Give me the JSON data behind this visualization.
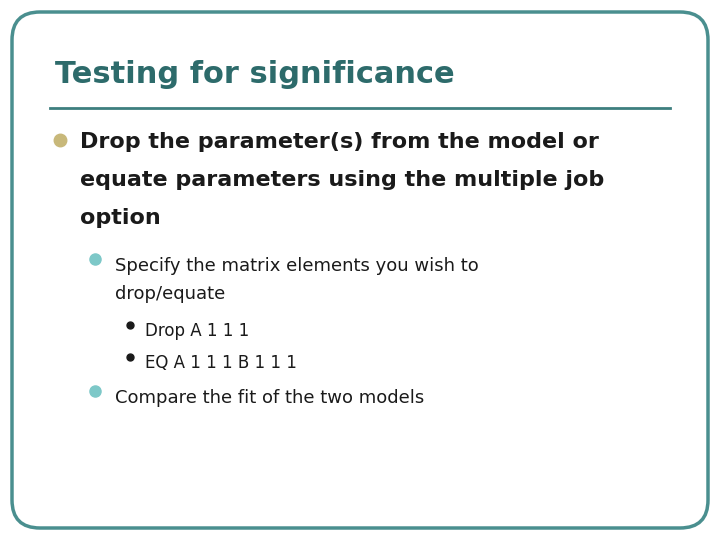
{
  "title": "Testing for significance",
  "title_color": "#2d6b6b",
  "title_fontsize": 22,
  "background_color": "#ffffff",
  "border_color": "#4a8f8f",
  "border_linewidth": 2.5,
  "separator_color": "#3d7f7f",
  "level1_bullet_color": "#c8b87a",
  "level2_bullet_color": "#7dc8c8",
  "level3_bullet_color": "#1a1a1a",
  "level3_items": [
    "Drop A 1 1 1",
    "EQ A 1 1 1 B 1 1 1"
  ],
  "text_color": "#1a1a1a",
  "figsize": [
    7.2,
    5.4
  ],
  "dpi": 100
}
